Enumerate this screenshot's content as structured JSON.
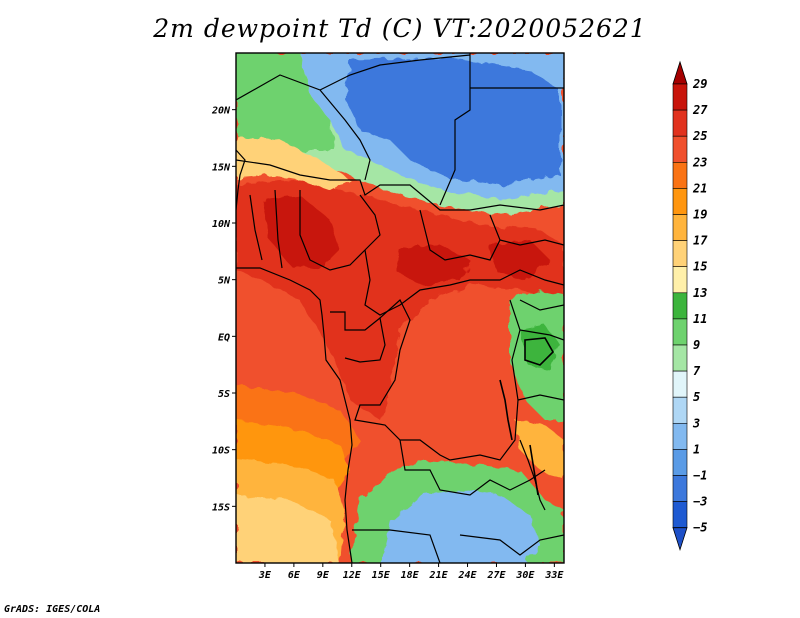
{
  "title": "2m dewpoint Td (C) VT:2020052621",
  "credit": "GrADS: IGES/COLA",
  "map": {
    "lat_range": [
      -20,
      25
    ],
    "lon_range": [
      0,
      34
    ],
    "lat_ticks": [
      {
        "value": 20,
        "label": "20N"
      },
      {
        "value": 15,
        "label": "15N"
      },
      {
        "value": 10,
        "label": "10N"
      },
      {
        "value": 5,
        "label": "5N"
      },
      {
        "value": 0,
        "label": "EQ"
      },
      {
        "value": -5,
        "label": "5S"
      },
      {
        "value": -10,
        "label": "10S"
      },
      {
        "value": -15,
        "label": "15S"
      }
    ],
    "lon_ticks": [
      {
        "value": 3,
        "label": "3E"
      },
      {
        "value": 6,
        "label": "6E"
      },
      {
        "value": 9,
        "label": "9E"
      },
      {
        "value": 12,
        "label": "12E"
      },
      {
        "value": 15,
        "label": "15E"
      },
      {
        "value": 18,
        "label": "18E"
      },
      {
        "value": 21,
        "label": "21E"
      },
      {
        "value": 24,
        "label": "24E"
      },
      {
        "value": 27,
        "label": "27E"
      },
      {
        "value": 30,
        "label": "30E"
      },
      {
        "value": 33,
        "label": "33E"
      }
    ]
  },
  "colorbar": {
    "levels": [
      {
        "label": "29",
        "color": "#a50000"
      },
      {
        "label": "27",
        "color": "#c8140a"
      },
      {
        "label": "25",
        "color": "#e1321e"
      },
      {
        "label": "23",
        "color": "#f0502d"
      },
      {
        "label": "21",
        "color": "#fa7314"
      },
      {
        "label": "19",
        "color": "#ff960f"
      },
      {
        "label": "17",
        "color": "#ffb43c"
      },
      {
        "label": "15",
        "color": "#ffd278"
      },
      {
        "label": "13",
        "color": "#fff0aa"
      },
      {
        "label": "11",
        "color": "#3cb43c"
      },
      {
        "label": "9",
        "color": "#6ed26e"
      },
      {
        "label": "7",
        "color": "#a5e6a5"
      },
      {
        "label": "5",
        "color": "#e1f5fa"
      },
      {
        "label": "3",
        "color": "#afd7f5"
      },
      {
        "label": "1",
        "color": "#82b9f0"
      },
      {
        "label": "−1",
        "color": "#5a9be6"
      },
      {
        "label": "−3",
        "color": "#3c78dc"
      },
      {
        "label": "−5",
        "color": "#1e5ad2"
      }
    ],
    "bottom_color": "#1e50c8"
  }
}
